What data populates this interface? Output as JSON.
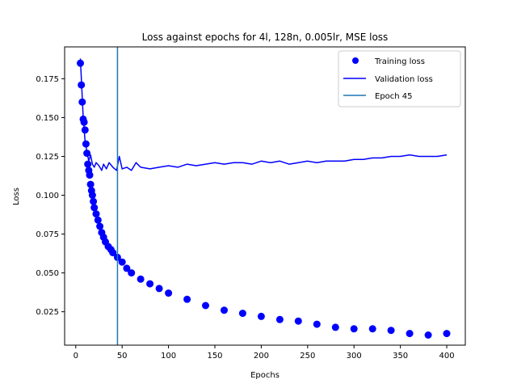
{
  "chart_data": {
    "type": "line",
    "title": "Loss against epochs for 4l, 128n, 0.005lr, MSE loss",
    "xlabel": "Epochs",
    "ylabel": "Loss",
    "xlim": [
      -12,
      420
    ],
    "ylim": [
      0.0035,
      0.1955
    ],
    "xticks": [
      0,
      50,
      100,
      150,
      200,
      250,
      300,
      350,
      400
    ],
    "yticks": [
      0.025,
      0.05,
      0.075,
      0.1,
      0.125,
      0.15,
      0.175
    ],
    "ytick_labels": [
      "0.025",
      "0.050",
      "0.075",
      "0.100",
      "0.125",
      "0.150",
      "0.175"
    ],
    "grid": false,
    "legend_position": "top-right",
    "series": [
      {
        "name": "Training loss",
        "style": "markers",
        "color": "#0000ff",
        "x": [
          5,
          6,
          7,
          8,
          9,
          10,
          11,
          12,
          13,
          14,
          15,
          16,
          17,
          18,
          19,
          20,
          22,
          24,
          26,
          28,
          30,
          32,
          35,
          38,
          40,
          45,
          50,
          55,
          60,
          70,
          80,
          90,
          100,
          120,
          140,
          160,
          180,
          200,
          220,
          240,
          260,
          280,
          300,
          320,
          340,
          360,
          380,
          400
        ],
        "y": [
          0.185,
          0.171,
          0.16,
          0.149,
          0.147,
          0.142,
          0.133,
          0.127,
          0.12,
          0.116,
          0.113,
          0.107,
          0.103,
          0.1,
          0.096,
          0.092,
          0.088,
          0.084,
          0.08,
          0.076,
          0.073,
          0.07,
          0.067,
          0.065,
          0.063,
          0.06,
          0.057,
          0.053,
          0.05,
          0.046,
          0.043,
          0.04,
          0.037,
          0.033,
          0.029,
          0.026,
          0.024,
          0.022,
          0.02,
          0.019,
          0.017,
          0.015,
          0.014,
          0.014,
          0.013,
          0.011,
          0.01,
          0.011
        ]
      },
      {
        "name": "Validation loss",
        "style": "line",
        "color": "#0000ff",
        "x": [
          5,
          8,
          10,
          12,
          14,
          16,
          18,
          20,
          22,
          25,
          28,
          30,
          33,
          36,
          40,
          44,
          47,
          50,
          55,
          60,
          65,
          70,
          80,
          90,
          100,
          110,
          120,
          130,
          140,
          150,
          160,
          170,
          180,
          190,
          200,
          210,
          220,
          230,
          240,
          250,
          260,
          270,
          280,
          290,
          300,
          310,
          320,
          330,
          340,
          350,
          360,
          370,
          380,
          390,
          400
        ],
        "y": [
          0.188,
          0.15,
          0.135,
          0.128,
          0.122,
          0.126,
          0.12,
          0.118,
          0.121,
          0.119,
          0.116,
          0.12,
          0.117,
          0.121,
          0.118,
          0.116,
          0.125,
          0.117,
          0.118,
          0.116,
          0.121,
          0.118,
          0.117,
          0.118,
          0.119,
          0.118,
          0.12,
          0.119,
          0.12,
          0.121,
          0.12,
          0.121,
          0.121,
          0.12,
          0.122,
          0.121,
          0.122,
          0.12,
          0.121,
          0.122,
          0.121,
          0.122,
          0.122,
          0.122,
          0.123,
          0.123,
          0.124,
          0.124,
          0.125,
          0.125,
          0.126,
          0.125,
          0.125,
          0.125,
          0.126
        ]
      }
    ],
    "vlines": [
      {
        "name": "Epoch 45",
        "x": 45,
        "color": "#1f77b4"
      }
    ]
  }
}
